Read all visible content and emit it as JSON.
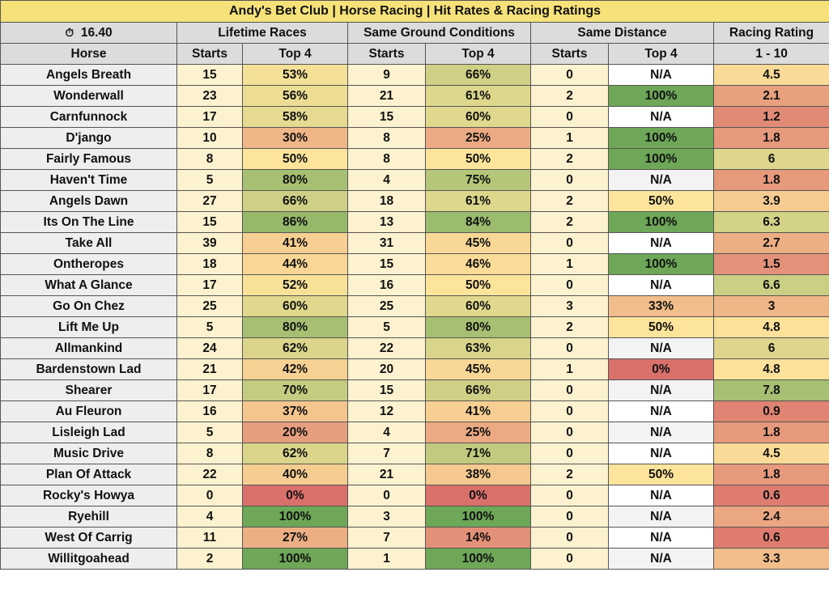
{
  "title": "Andy's Bet Club | Horse Racing | Hit Rates & Racing Ratings",
  "race_time": "16.40",
  "icons": {
    "timer": "stopwatch-icon"
  },
  "group_headers": {
    "lifetime": "Lifetime Races",
    "ground": "Same Ground Conditions",
    "distance": "Same Distance",
    "rating": "Racing Rating"
  },
  "column_headers": {
    "horse": "Horse",
    "lifetime_starts": "Starts",
    "lifetime_top4": "Top 4",
    "ground_starts": "Starts",
    "ground_top4": "Top 4",
    "distance_starts": "Starts",
    "distance_top4": "Top 4",
    "rating": "1 - 10"
  },
  "colors": {
    "title_bg": "#f7e27a",
    "header_bg": "#dcdcdc",
    "name_bg": "#eeeeee",
    "starts_bg": "#fdf2cf",
    "scale_low": "#d9706a",
    "scale_mid": "#fde49b",
    "scale_high": "#6da757"
  },
  "rows": [
    {
      "horse": "Angels Breath",
      "lifetime_starts": "15",
      "lifetime_top4": "53%",
      "ground_starts": "9",
      "ground_top4": "66%",
      "distance_starts": "0",
      "distance_top4": "N/A",
      "rating": "4.5"
    },
    {
      "horse": "Wonderwall",
      "lifetime_starts": "23",
      "lifetime_top4": "56%",
      "ground_starts": "21",
      "ground_top4": "61%",
      "distance_starts": "2",
      "distance_top4": "100%",
      "rating": "2.1"
    },
    {
      "horse": "Carnfunnock",
      "lifetime_starts": "17",
      "lifetime_top4": "58%",
      "ground_starts": "15",
      "ground_top4": "60%",
      "distance_starts": "0",
      "distance_top4": "N/A",
      "rating": "1.2"
    },
    {
      "horse": "D'jango",
      "lifetime_starts": "10",
      "lifetime_top4": "30%",
      "ground_starts": "8",
      "ground_top4": "25%",
      "distance_starts": "1",
      "distance_top4": "100%",
      "rating": "1.8"
    },
    {
      "horse": "Fairly Famous",
      "lifetime_starts": "8",
      "lifetime_top4": "50%",
      "ground_starts": "8",
      "ground_top4": "50%",
      "distance_starts": "2",
      "distance_top4": "100%",
      "rating": "6"
    },
    {
      "horse": "Haven't Time",
      "lifetime_starts": "5",
      "lifetime_top4": "80%",
      "ground_starts": "4",
      "ground_top4": "75%",
      "distance_starts": "0",
      "distance_top4": "N/A",
      "rating": "1.8"
    },
    {
      "horse": "Angels Dawn",
      "lifetime_starts": "27",
      "lifetime_top4": "66%",
      "ground_starts": "18",
      "ground_top4": "61%",
      "distance_starts": "2",
      "distance_top4": "50%",
      "rating": "3.9"
    },
    {
      "horse": "Its On The Line",
      "lifetime_starts": "15",
      "lifetime_top4": "86%",
      "ground_starts": "13",
      "ground_top4": "84%",
      "distance_starts": "2",
      "distance_top4": "100%",
      "rating": "6.3"
    },
    {
      "horse": "Take All",
      "lifetime_starts": "39",
      "lifetime_top4": "41%",
      "ground_starts": "31",
      "ground_top4": "45%",
      "distance_starts": "0",
      "distance_top4": "N/A",
      "rating": "2.7"
    },
    {
      "horse": "Ontheropes",
      "lifetime_starts": "18",
      "lifetime_top4": "44%",
      "ground_starts": "15",
      "ground_top4": "46%",
      "distance_starts": "1",
      "distance_top4": "100%",
      "rating": "1.5"
    },
    {
      "horse": "What A Glance",
      "lifetime_starts": "17",
      "lifetime_top4": "52%",
      "ground_starts": "16",
      "ground_top4": "50%",
      "distance_starts": "0",
      "distance_top4": "N/A",
      "rating": "6.6"
    },
    {
      "horse": "Go On Chez",
      "lifetime_starts": "25",
      "lifetime_top4": "60%",
      "ground_starts": "25",
      "ground_top4": "60%",
      "distance_starts": "3",
      "distance_top4": "33%",
      "rating": "3"
    },
    {
      "horse": "Lift Me Up",
      "lifetime_starts": "5",
      "lifetime_top4": "80%",
      "ground_starts": "5",
      "ground_top4": "80%",
      "distance_starts": "2",
      "distance_top4": "50%",
      "rating": "4.8"
    },
    {
      "horse": "Allmankind",
      "lifetime_starts": "24",
      "lifetime_top4": "62%",
      "ground_starts": "22",
      "ground_top4": "63%",
      "distance_starts": "0",
      "distance_top4": "N/A",
      "rating": "6"
    },
    {
      "horse": "Bardenstown Lad",
      "lifetime_starts": "21",
      "lifetime_top4": "42%",
      "ground_starts": "20",
      "ground_top4": "45%",
      "distance_starts": "1",
      "distance_top4": "0%",
      "rating": "4.8"
    },
    {
      "horse": "Shearer",
      "lifetime_starts": "17",
      "lifetime_top4": "70%",
      "ground_starts": "15",
      "ground_top4": "66%",
      "distance_starts": "0",
      "distance_top4": "N/A",
      "rating": "7.8"
    },
    {
      "horse": "Au Fleuron",
      "lifetime_starts": "16",
      "lifetime_top4": "37%",
      "ground_starts": "12",
      "ground_top4": "41%",
      "distance_starts": "0",
      "distance_top4": "N/A",
      "rating": "0.9"
    },
    {
      "horse": "Lisleigh Lad",
      "lifetime_starts": "5",
      "lifetime_top4": "20%",
      "ground_starts": "4",
      "ground_top4": "25%",
      "distance_starts": "0",
      "distance_top4": "N/A",
      "rating": "1.8"
    },
    {
      "horse": "Music Drive",
      "lifetime_starts": "8",
      "lifetime_top4": "62%",
      "ground_starts": "7",
      "ground_top4": "71%",
      "distance_starts": "0",
      "distance_top4": "N/A",
      "rating": "4.5"
    },
    {
      "horse": "Plan Of Attack",
      "lifetime_starts": "22",
      "lifetime_top4": "40%",
      "ground_starts": "21",
      "ground_top4": "38%",
      "distance_starts": "2",
      "distance_top4": "50%",
      "rating": "1.8"
    },
    {
      "horse": "Rocky's Howya",
      "lifetime_starts": "0",
      "lifetime_top4": "0%",
      "ground_starts": "0",
      "ground_top4": "0%",
      "distance_starts": "0",
      "distance_top4": "N/A",
      "rating": "0.6"
    },
    {
      "horse": "Ryehill",
      "lifetime_starts": "4",
      "lifetime_top4": "100%",
      "ground_starts": "3",
      "ground_top4": "100%",
      "distance_starts": "0",
      "distance_top4": "N/A",
      "rating": "2.4"
    },
    {
      "horse": "West Of Carrig",
      "lifetime_starts": "11",
      "lifetime_top4": "27%",
      "ground_starts": "7",
      "ground_top4": "14%",
      "distance_starts": "0",
      "distance_top4": "N/A",
      "rating": "0.6"
    },
    {
      "horse": "Willitgoahead",
      "lifetime_starts": "2",
      "lifetime_top4": "100%",
      "ground_starts": "1",
      "ground_top4": "100%",
      "distance_starts": "0",
      "distance_top4": "N/A",
      "rating": "3.3"
    }
  ]
}
